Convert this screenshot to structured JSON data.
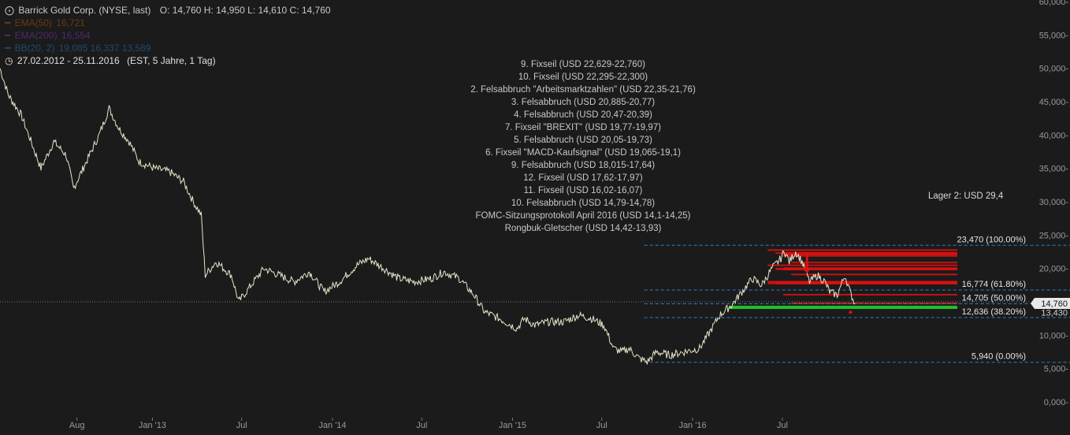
{
  "header": {
    "instrument": "Barrick Gold Corp. (NYSE, last)",
    "ohlc": "O: 14,760  H: 14,950  L: 14,610  C: 14,760",
    "ema50_label": "EMA(50)",
    "ema50_value": "16,721",
    "ema50_color": "#6b3a16",
    "ema200_label": "EMA(200)",
    "ema200_value": "16,554",
    "ema200_color": "#4e2a6a",
    "bb_label": "BB(20, 2)",
    "bb_values": "19,085  16,337  13,589",
    "bb_color": "#1e4a6e",
    "range": "27.02.2012 - 25.11.2016",
    "range_note": "(EST, 5 Jahre, 1 Tag)"
  },
  "annotations": [
    "9. Fixseil  (USD 22,629-22,760)",
    "10. Fixseil  (USD 22,295-22,300)",
    "2. Felsabbruch \"Arbeitsmarktzahlen\" (USD 22,35-21,76)",
    "3. Felsabbruch (USD 20,885-20,77)",
    "4. Felsabbruch (USD 20,47-20,39)",
    "7. Fixseil  \"BREXIT\" (USD 19,77-19,97)",
    "5. Felsabbruch (USD 20,05-19,73)",
    "6. Fixseil  \"MACD-Kaufsignal\" (USD 19,065-19,1)",
    "9. Felsabbruch (USD 18,015-17,64)",
    "12. Fixseil (USD 17,62-17,97)",
    "11. Fixseil (USD 16,02-16,07)",
    "10. Felsabbruch (USD 14,79-14,78)",
    "FOMC-Sitzungsprotokoll April 2016 (USD 14,1-14,25)",
    "Rongbuk-Gletscher (USD 14,42-13,93)"
  ],
  "lager": "Lager 2: USD 29,4",
  "chart_data": {
    "type": "line",
    "y_ticks": [
      {
        "value": 0,
        "label": "0,000-"
      },
      {
        "value": 5,
        "label": "5,000-"
      },
      {
        "value": 10,
        "label": "10,000-"
      },
      {
        "value": 15,
        "label": "15,000-"
      },
      {
        "value": 20,
        "label": "20,000-"
      },
      {
        "value": 25,
        "label": "25,000-"
      },
      {
        "value": 30,
        "label": "30,000-"
      },
      {
        "value": 35,
        "label": "35,000-"
      },
      {
        "value": 40,
        "label": "40,000-"
      },
      {
        "value": 45,
        "label": "45,000-"
      },
      {
        "value": 50,
        "label": "50,000-"
      },
      {
        "value": 55,
        "label": "55,000-"
      },
      {
        "value": 60,
        "label": "60,000-"
      }
    ],
    "ylim": [
      0,
      60
    ],
    "x_ticks": [
      {
        "date": "2012-08-01",
        "label": "Aug"
      },
      {
        "date": "2013-01-01",
        "label": "Jan '13"
      },
      {
        "date": "2013-07-01",
        "label": "Jul"
      },
      {
        "date": "2014-01-01",
        "label": "Jan '14"
      },
      {
        "date": "2014-07-01",
        "label": "Jul"
      },
      {
        "date": "2015-01-01",
        "label": "Jan '15"
      },
      {
        "date": "2015-07-01",
        "label": "Jul"
      },
      {
        "date": "2016-01-01",
        "label": "Jan '16"
      },
      {
        "date": "2016-07-01",
        "label": "Jul"
      }
    ],
    "xlim": [
      "2012-02-27",
      "2016-11-25"
    ],
    "series": [
      {
        "points": [
          [
            "2012-02-27",
            50.0
          ],
          [
            "2012-03-15",
            46.0
          ],
          [
            "2012-04-10",
            43.0
          ],
          [
            "2012-05-05",
            38.0
          ],
          [
            "2012-05-20",
            35.0
          ],
          [
            "2012-06-15",
            39.0
          ],
          [
            "2012-07-10",
            37.0
          ],
          [
            "2012-07-25",
            32.0
          ],
          [
            "2012-08-20",
            36.0
          ],
          [
            "2012-09-15",
            40.0
          ],
          [
            "2012-10-05",
            44.0
          ],
          [
            "2012-10-25",
            41.0
          ],
          [
            "2012-11-15",
            39.0
          ],
          [
            "2012-12-05",
            36.0
          ],
          [
            "2013-01-05",
            35.0
          ],
          [
            "2013-02-05",
            34.5
          ],
          [
            "2013-03-05",
            33.0
          ],
          [
            "2013-03-25",
            30.0
          ],
          [
            "2013-04-10",
            28.0
          ],
          [
            "2013-04-18",
            19.0
          ],
          [
            "2013-05-10",
            21.0
          ],
          [
            "2013-06-10",
            19.0
          ],
          [
            "2013-06-25",
            15.0
          ],
          [
            "2013-07-15",
            17.0
          ],
          [
            "2013-08-15",
            20.0
          ],
          [
            "2013-09-15",
            19.0
          ],
          [
            "2013-10-15",
            18.0
          ],
          [
            "2013-11-15",
            19.5
          ],
          [
            "2013-12-15",
            16.5
          ],
          [
            "2014-01-15",
            18.0
          ],
          [
            "2014-02-20",
            20.5
          ],
          [
            "2014-03-15",
            21.5
          ],
          [
            "2014-04-15",
            20.0
          ],
          [
            "2014-05-15",
            18.5
          ],
          [
            "2014-06-15",
            18.0
          ],
          [
            "2014-07-20",
            18.5
          ],
          [
            "2014-08-15",
            19.5
          ],
          [
            "2014-09-15",
            18.5
          ],
          [
            "2014-10-15",
            16.0
          ],
          [
            "2014-11-05",
            13.5
          ],
          [
            "2014-12-05",
            12.5
          ],
          [
            "2015-01-10",
            11.0
          ],
          [
            "2015-01-25",
            12.5
          ],
          [
            "2015-02-15",
            11.5
          ],
          [
            "2015-03-15",
            12.0
          ],
          [
            "2015-04-15",
            12.0
          ],
          [
            "2015-05-15",
            13.0
          ],
          [
            "2015-06-10",
            12.5
          ],
          [
            "2015-07-05",
            11.5
          ],
          [
            "2015-07-25",
            8.0
          ],
          [
            "2015-08-10",
            7.5
          ],
          [
            "2015-08-25",
            8.0
          ],
          [
            "2015-09-15",
            6.5
          ],
          [
            "2015-10-01",
            6.0
          ],
          [
            "2015-10-20",
            7.5
          ],
          [
            "2015-11-15",
            7.0
          ],
          [
            "2015-12-15",
            7.5
          ],
          [
            "2016-01-15",
            8.0
          ],
          [
            "2016-02-05",
            10.5
          ],
          [
            "2016-02-25",
            13.0
          ],
          [
            "2016-03-20",
            14.5
          ],
          [
            "2016-04-10",
            16.5
          ],
          [
            "2016-05-01",
            18.5
          ],
          [
            "2016-05-20",
            17.5
          ],
          [
            "2016-06-10",
            20.0
          ],
          [
            "2016-06-28",
            21.5
          ],
          [
            "2016-07-05",
            22.7
          ],
          [
            "2016-07-15",
            21.0
          ],
          [
            "2016-07-28",
            22.5
          ],
          [
            "2016-08-10",
            21.0
          ],
          [
            "2016-08-25",
            18.0
          ],
          [
            "2016-09-10",
            19.0
          ],
          [
            "2016-09-25",
            18.0
          ],
          [
            "2016-10-05",
            16.5
          ],
          [
            "2016-10-20",
            16.0
          ],
          [
            "2016-11-05",
            19.0
          ],
          [
            "2016-11-15",
            16.5
          ],
          [
            "2016-11-25",
            14.76
          ]
        ],
        "color": "#e8e4c8"
      }
    ],
    "fib_levels": [
      {
        "value": 23.47,
        "label": "23,470 (100.00%)"
      },
      {
        "value": 16.774,
        "label": "16,774 (61.80%)"
      },
      {
        "value": 14.705,
        "label": "14,705 (50.00%)"
      },
      {
        "value": 12.636,
        "label": "12,636 (38.20%)"
      },
      {
        "value": 5.94,
        "label": "5,940 (0.00%)"
      }
    ],
    "fib_start": "2015-09-25",
    "resistance_zones": [
      {
        "from": 22.629,
        "to": 22.76
      },
      {
        "from": 22.295,
        "to": 22.3
      },
      {
        "from": 21.76,
        "to": 22.35
      },
      {
        "from": 20.77,
        "to": 20.885
      },
      {
        "from": 20.39,
        "to": 20.47
      },
      {
        "from": 19.77,
        "to": 19.97
      },
      {
        "from": 19.73,
        "to": 20.05
      },
      {
        "from": 19.065,
        "to": 19.1
      },
      {
        "from": 17.64,
        "to": 18.015
      },
      {
        "from": 17.62,
        "to": 17.97
      },
      {
        "from": 16.02,
        "to": 16.07
      },
      {
        "from": 14.78,
        "to": 14.79
      }
    ],
    "support_zones": [
      {
        "from": 14.1,
        "to": 14.25
      },
      {
        "from": 13.93,
        "to": 14.42
      }
    ],
    "zone_colors": {
      "resistance": "#e01010",
      "support": "#22cc22",
      "fib": "#2a7fc9",
      "arrow": "#e01010"
    },
    "arrow": {
      "date": "2016-08-20",
      "from": 22.4,
      "to": 19.3
    },
    "last_price": {
      "value": 14.76,
      "label": "14,760"
    },
    "secondary_label": {
      "value": 13.43,
      "label": "13,430"
    },
    "reference_line": 15.0,
    "low_marker": {
      "date": "2016-11-16",
      "value": 13.43
    }
  }
}
